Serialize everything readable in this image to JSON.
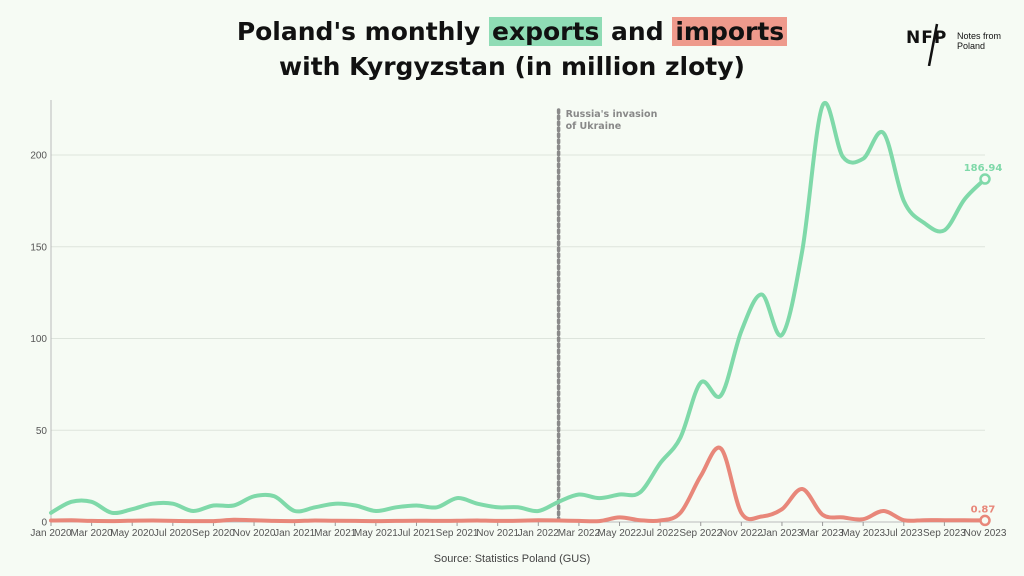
{
  "title": {
    "part1": "Poland's monthly ",
    "exports_word": "exports",
    "part2": " and ",
    "imports_word": "imports",
    "line2": "with Kyrgyzstan (in million zloty)"
  },
  "logo": {
    "mark": "NFP",
    "text_line1": "Notes from",
    "text_line2": "Poland"
  },
  "source": "Source: Statistics Poland (GUS)",
  "colors": {
    "exports": "#7fd9a9",
    "imports": "#e8877a",
    "background": "#f6fbf4"
  },
  "chart_data": {
    "type": "line",
    "ylim": [
      0,
      230
    ],
    "yticks": [
      0,
      50,
      100,
      150,
      200
    ],
    "x": [
      "Jan 2020",
      "Feb 2020",
      "Mar 2020",
      "Apr 2020",
      "May 2020",
      "Jun 2020",
      "Jul 2020",
      "Aug 2020",
      "Sep 2020",
      "Oct 2020",
      "Nov 2020",
      "Dec 2020",
      "Jan 2021",
      "Feb 2021",
      "Mar 2021",
      "Apr 2021",
      "May 2021",
      "Jun 2021",
      "Jul 2021",
      "Aug 2021",
      "Sep 2021",
      "Oct 2021",
      "Nov 2021",
      "Dec 2021",
      "Jan 2022",
      "Feb 2022",
      "Mar 2022",
      "Apr 2022",
      "May 2022",
      "Jun 2022",
      "Jul 2022",
      "Aug 2022",
      "Sep 2022",
      "Oct 2022",
      "Nov 2022",
      "Dec 2022",
      "Jan 2023",
      "Feb 2023",
      "Mar 2023",
      "Apr 2023",
      "May 2023",
      "Jun 2023",
      "Jul 2023",
      "Aug 2023",
      "Sep 2023",
      "Oct 2023",
      "Nov 2023"
    ],
    "xtick_labels": [
      "Jan 2020",
      "Mar 2020",
      "May 2020",
      "Jul 2020",
      "Sep 2020",
      "Nov 2020",
      "Jan 2021",
      "Mar 2021",
      "May 2021",
      "Jul 2021",
      "Sep 2021",
      "Nov 2021",
      "Jan 2022",
      "Mar 2022",
      "May 2022",
      "Jul 2022",
      "Sep 2022",
      "Nov 2022",
      "Jan 2023",
      "Mar 2023",
      "May 2023",
      "Jul 2023",
      "Sep 2023",
      "Nov 2023"
    ],
    "series": [
      {
        "name": "exports",
        "values": [
          5,
          11,
          11,
          5,
          7,
          10,
          10,
          6,
          9,
          9,
          14,
          14,
          6,
          8,
          10,
          9,
          6,
          8,
          9,
          8,
          13,
          10,
          8,
          8,
          6,
          11,
          15,
          13,
          15,
          16,
          32,
          46,
          76,
          69,
          104,
          124,
          102,
          148,
          227,
          199,
          198,
          212,
          175,
          163,
          159,
          176,
          186.94
        ]
      },
      {
        "name": "imports",
        "values": [
          0.8,
          0.9,
          0.6,
          0.5,
          0.7,
          0.8,
          0.6,
          0.5,
          0.5,
          1.2,
          0.9,
          0.6,
          0.5,
          0.8,
          0.7,
          0.6,
          0.5,
          0.6,
          0.7,
          0.6,
          0.7,
          0.8,
          0.6,
          0.7,
          0.9,
          0.8,
          0.6,
          0.5,
          2.5,
          1.0,
          0.8,
          5,
          25,
          40,
          5,
          3,
          7,
          18,
          4,
          2.5,
          1.5,
          6,
          1,
          1,
          1,
          0.9,
          0.87
        ]
      }
    ],
    "end_label_exports": "186.94",
    "end_label_imports": "0.87",
    "annotation": {
      "at": "Feb 2022",
      "line1": "Russia's invasion",
      "line2": "of Ukraine"
    },
    "grid": true
  }
}
